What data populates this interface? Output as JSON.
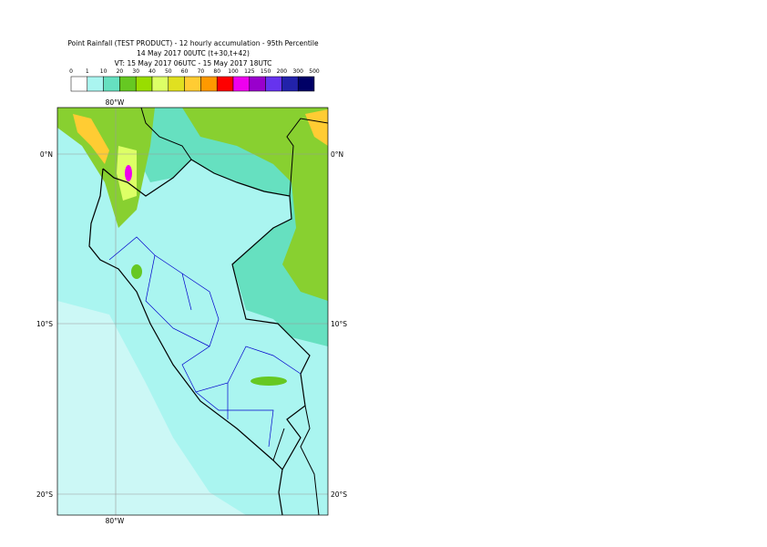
{
  "header": {
    "title": "Point Rainfall (TEST PRODUCT) - 12 hourly accumulation - 95th Percentile",
    "line2": "14 May 2017 00UTC (t+30,t+42)",
    "line3": "VT: 15 May 2017 06UTC - 15 May 2017 18UTC"
  },
  "colorbar": {
    "labels": [
      0,
      1,
      10,
      20,
      30,
      40,
      50,
      60,
      70,
      80,
      100,
      125,
      150,
      200,
      300,
      500
    ],
    "colors": [
      "#ffffff",
      "#aaf5f0",
      "#66e0c0",
      "#66c822",
      "#99dd00",
      "#ddff66",
      "#e0e020",
      "#ffcc33",
      "#ff9900",
      "#ff0000",
      "#ee00ee",
      "#9900cc",
      "#6633ee",
      "#2222aa",
      "#000066"
    ]
  },
  "map": {
    "lon_labels": [
      "80°W"
    ],
    "lat_labels": [
      "0°N",
      "10°S",
      "20°S"
    ]
  }
}
